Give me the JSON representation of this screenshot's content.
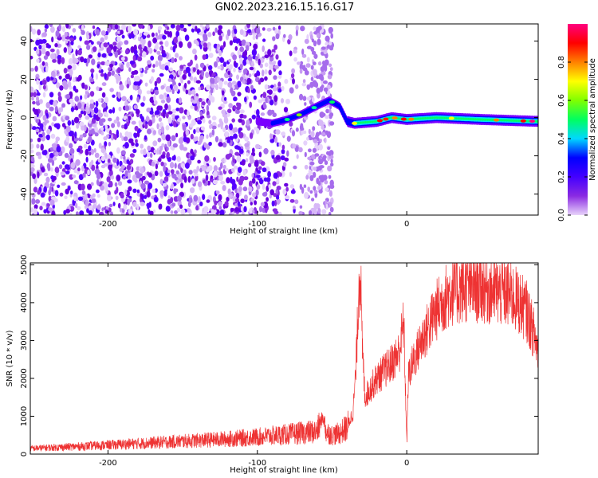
{
  "title": "GN02.2023.216.15.16.G17",
  "chart_data": [
    {
      "type": "heatmap",
      "xlabel": "Height of straight line (km)",
      "ylabel": "Frequency (Hz)",
      "xlim": [
        -252,
        88
      ],
      "ylim": [
        -51,
        49
      ],
      "x_ticks": [
        -200,
        -100,
        0
      ],
      "y_ticks": [
        -40,
        -20,
        0,
        20,
        40
      ],
      "colorbar": {
        "label": "Normalized spectral amplitude",
        "range": [
          0.0,
          1.0
        ],
        "ticks": [
          0.0,
          0.2,
          0.4,
          0.6,
          0.8
        ],
        "tick_labels": [
          "0.0",
          "0.2",
          "0.4",
          "0.6",
          "0.8"
        ],
        "colormap": [
          "#e8d4fa",
          "#8a2be2",
          "#4400ff",
          "#0000ff",
          "#00d8ff",
          "#00ff60",
          "#80ff00",
          "#ffff00",
          "#ff8000",
          "#ff0000",
          "#ff0080"
        ]
      },
      "noise_region_x": [
        -252,
        -50
      ],
      "signal_track": [
        {
          "x": -100,
          "y": -2
        },
        {
          "x": -90,
          "y": -3
        },
        {
          "x": -80,
          "y": -1
        },
        {
          "x": -70,
          "y": 2
        },
        {
          "x": -60,
          "y": 6
        },
        {
          "x": -52,
          "y": 9
        },
        {
          "x": -45,
          "y": 6
        },
        {
          "x": -40,
          "y": -2
        },
        {
          "x": -35,
          "y": -3
        },
        {
          "x": -20,
          "y": -2
        },
        {
          "x": -10,
          "y": 0
        },
        {
          "x": 0,
          "y": -1
        },
        {
          "x": 20,
          "y": 0
        },
        {
          "x": 50,
          "y": -1
        },
        {
          "x": 88,
          "y": -2
        }
      ]
    },
    {
      "type": "line",
      "xlabel": "Height of straight line (km)",
      "ylabel": "SNR (10 * v/v)",
      "xlim": [
        -252,
        88
      ],
      "ylim": [
        0,
        5050
      ],
      "x_ticks": [
        -200,
        -100,
        0
      ],
      "y_ticks": [
        0,
        1000,
        2000,
        3000,
        4000,
        5000
      ],
      "series_color": "#ee3333",
      "series": [
        {
          "x": [
            -252,
            -240,
            -220,
            -200,
            -180,
            -160,
            -140,
            -120,
            -100,
            -80,
            -60,
            -58,
            -56,
            -54,
            -50,
            -45,
            -40,
            -36,
            -34,
            -32,
            -31,
            -30,
            -28,
            -25,
            -20,
            -15,
            -10,
            -5,
            -2,
            0,
            1,
            2,
            5,
            10,
            15,
            20,
            25,
            30,
            40,
            50,
            60,
            70,
            75,
            80,
            85,
            88
          ],
          "y": [
            150,
            170,
            200,
            240,
            280,
            320,
            360,
            400,
            450,
            520,
            600,
            800,
            1000,
            600,
            500,
            550,
            700,
            1100,
            2200,
            4500,
            5000,
            3000,
            1500,
            1700,
            2000,
            2200,
            2400,
            2700,
            3500,
            300,
            2000,
            2200,
            2500,
            3000,
            3400,
            3800,
            4100,
            4300,
            4400,
            4400,
            4300,
            4200,
            4000,
            3800,
            3200,
            2700
          ]
        }
      ]
    }
  ]
}
